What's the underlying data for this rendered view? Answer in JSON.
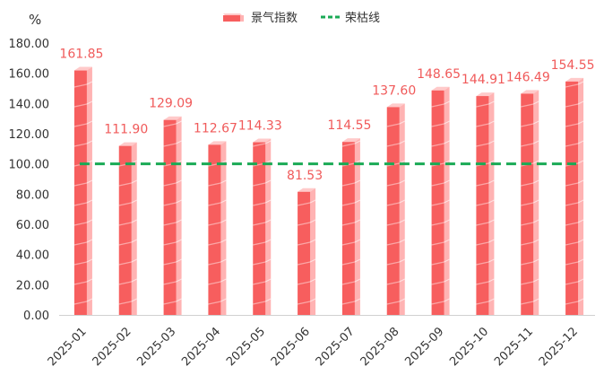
{
  "chart_data": {
    "type": "bar",
    "unit": "%",
    "categories": [
      "2025-01",
      "2025-02",
      "2025-03",
      "2025-04",
      "2025-05",
      "2025-06",
      "2025-07",
      "2025-08",
      "2025-09",
      "2025-10",
      "2025-11",
      "2025-12"
    ],
    "series": [
      {
        "name": "景气指数",
        "type": "bar",
        "values": [
          161.85,
          111.9,
          129.09,
          112.67,
          114.33,
          81.53,
          114.55,
          137.6,
          148.65,
          144.91,
          146.49,
          154.55
        ],
        "labels": [
          "161.85",
          "111.90",
          "129.09",
          "112.67",
          "114.33",
          "81.53",
          "114.55",
          "137.60",
          "148.65",
          "144.91",
          "146.49",
          "154.55"
        ]
      },
      {
        "name": "荣枯线",
        "type": "line",
        "value": 100
      }
    ],
    "y_ticks": [
      "0.00",
      "20.00",
      "40.00",
      "60.00",
      "80.00",
      "100.00",
      "120.00",
      "140.00",
      "160.00",
      "180.00"
    ],
    "ylim": [
      0,
      180
    ],
    "grid": false,
    "legend_position": "top-center",
    "colors": {
      "bar_front": "#f75e5e",
      "bar_side": "#ffb3b3",
      "bar_top": "#ffcaca",
      "bar_stripe": "#ffffff",
      "line": "#1aaa55",
      "label": "#f05a5a",
      "axis": "#d0d0d0"
    }
  }
}
